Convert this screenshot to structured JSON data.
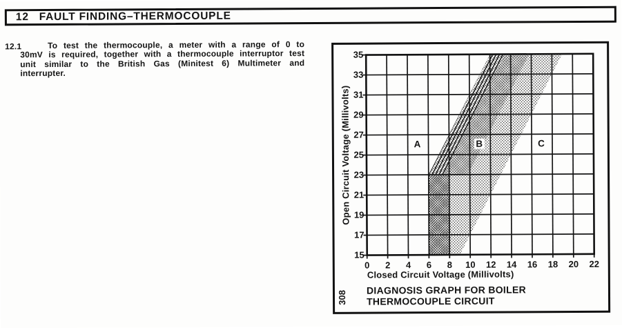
{
  "header": {
    "number": "12",
    "title": "FAULT FINDING–THERMOCOUPLE"
  },
  "paragraph": {
    "number": "12.1",
    "text": "To test the thermocouple, a meter with a range of 0 to 30mV is required, together with a thermocouple interruptor test unit similar to the British Gas (Minitest 6) Multimeter and interrupter."
  },
  "figure": {
    "number": "308",
    "caption_line1": "DIAGNOSIS GRAPH FOR BOILER",
    "caption_line2": "THERMOCOUPLE CIRCUIT"
  },
  "colors": {
    "ink": "#141414",
    "paper": "#fdfdfc"
  },
  "chart_data": {
    "type": "area",
    "title": "DIAGNOSIS GRAPH FOR BOILER THERMOCOUPLE CIRCUIT",
    "xlabel": "Closed Circuit Voltage (Millivolts)",
    "ylabel": "Open Circuit Voltage (Millivolts)",
    "xlim": [
      0,
      22
    ],
    "ylim": [
      15,
      35
    ],
    "x_ticks": [
      0,
      2,
      4,
      6,
      8,
      10,
      12,
      14,
      16,
      18,
      20,
      22
    ],
    "y_ticks": [
      15,
      17,
      19,
      21,
      23,
      25,
      27,
      29,
      31,
      33,
      35
    ],
    "grid": true,
    "legend_position": "none",
    "regions": [
      {
        "label": "A",
        "x": 5,
        "y": 26,
        "description": "region left of shaded band"
      },
      {
        "label": "B",
        "x": 11,
        "y": 26,
        "description": "region inside shaded band"
      },
      {
        "label": "C",
        "x": 17,
        "y": 26,
        "description": "region right of shaded band"
      }
    ],
    "shaded_band": {
      "outline": [
        [
          6,
          15
        ],
        [
          9,
          15
        ],
        [
          19,
          35
        ],
        [
          12,
          35
        ],
        [
          6,
          23
        ]
      ],
      "hatch_strip": [
        [
          6,
          23
        ],
        [
          12,
          35
        ],
        [
          13.4,
          35
        ],
        [
          7.4,
          23
        ]
      ],
      "dense_strip": [
        [
          7.4,
          23
        ],
        [
          13.4,
          35
        ],
        [
          15.8,
          35
        ],
        [
          9.8,
          23
        ]
      ],
      "dark_column": [
        [
          6,
          15
        ],
        [
          8,
          15
        ],
        [
          8,
          23
        ],
        [
          6,
          23
        ]
      ]
    }
  }
}
